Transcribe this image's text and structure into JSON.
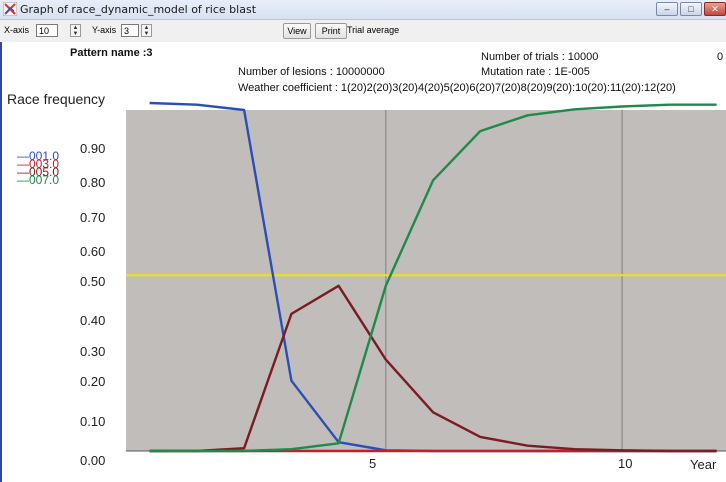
{
  "window": {
    "title": "Graph of race_dynamic_model of rice blast",
    "min_label": "–",
    "max_label": "□",
    "close_label": "✕"
  },
  "toolbar": {
    "xaxis_label": "X-axis",
    "xaxis_value": "10",
    "yaxis_label": "Y-axis",
    "yaxis_value": "3",
    "view_label": "View",
    "print_label": "Print",
    "status": "Trial average"
  },
  "info": {
    "pattern": "Pattern name :3",
    "trials": "Number of trials : 10000",
    "right_char": "0",
    "lesions": "Number of lesions : 10000000",
    "mutation": "Mutation rate : 1E-005",
    "weather": "Weather coefficient : 1(20)2(20)3(20)4(20)5(20)6(20)7(20)8(20)9(20):10(20):11(20):12(20)"
  },
  "chart_data": {
    "type": "line",
    "ylabel": "Race frequency",
    "xlabel": "Year",
    "x": [
      0,
      1,
      2,
      3,
      4,
      5,
      6,
      7,
      8,
      9,
      10,
      11,
      12
    ],
    "xlim": [
      -0.5,
      12.2
    ],
    "ylim": [
      0,
      0.97
    ],
    "yticks": [
      "0.00",
      "0.10",
      "0.20",
      "0.30",
      "0.40",
      "0.50",
      "0.60",
      "0.70",
      "0.80",
      "0.90"
    ],
    "ytick_values": [
      0,
      0.1,
      0.2,
      0.3,
      0.4,
      0.5,
      0.6,
      0.7,
      0.8,
      0.9
    ],
    "xticks": [
      "5",
      "10"
    ],
    "xtick_values": [
      5,
      10
    ],
    "vgrid": [
      5,
      10
    ],
    "threshold": 0.5,
    "threshold_color": "#f2e600",
    "plot_bg": "#c0bdbb",
    "grid_color": "#7f7f7f",
    "grid": true,
    "series": [
      {
        "name": "001.0",
        "color": "#2a4fb5",
        "values": [
          0.99,
          0.985,
          0.97,
          0.2,
          0.025,
          0.002,
          0.0,
          0.0,
          0.0,
          0.0,
          0.0,
          0.0,
          0.0
        ]
      },
      {
        "name": "003.0",
        "color": "#c0202a",
        "values": [
          0.0,
          0.0,
          0.0,
          0.0,
          0.0,
          0.0,
          0.0,
          0.0,
          0.0,
          0.0,
          0.0,
          0.0,
          0.0
        ]
      },
      {
        "name": "005.0",
        "color": "#7a1c22",
        "values": [
          0.0,
          0.0,
          0.008,
          0.39,
          0.47,
          0.26,
          0.11,
          0.04,
          0.015,
          0.005,
          0.002,
          0.0,
          0.0
        ]
      },
      {
        "name": "007.0",
        "color": "#1f8a4a",
        "values": [
          0.0,
          0.0,
          0.0,
          0.005,
          0.022,
          0.47,
          0.77,
          0.91,
          0.955,
          0.972,
          0.98,
          0.985,
          0.985
        ]
      }
    ]
  }
}
